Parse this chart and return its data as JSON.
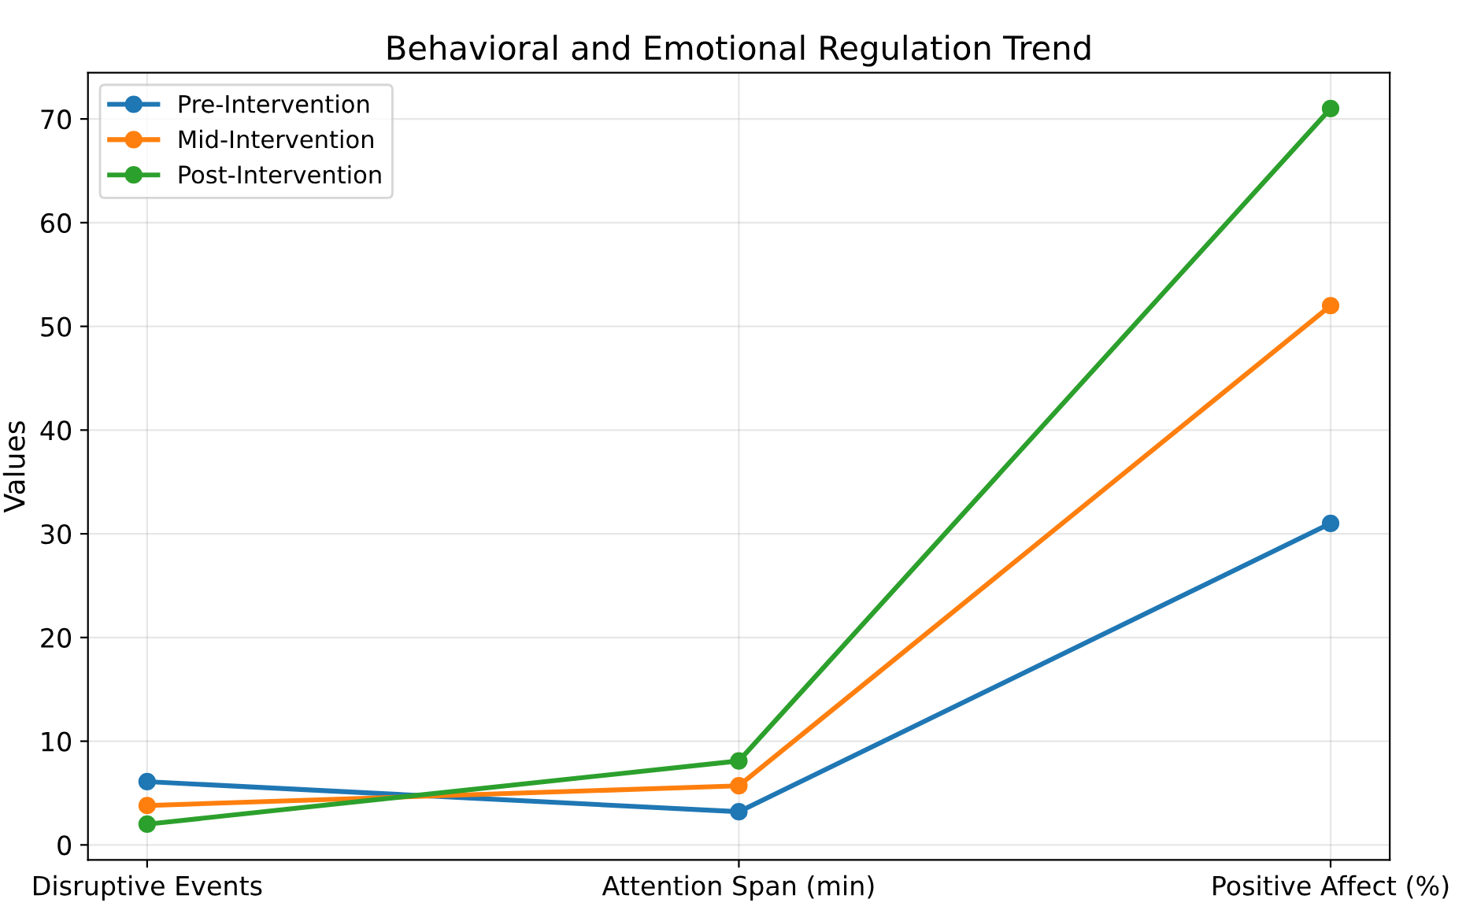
{
  "chart_data": {
    "type": "line",
    "title": "Behavioral and Emotional Regulation Trend",
    "ylabel": "Values",
    "categories": [
      "Disruptive Events",
      "Attention Span (min)",
      "Positive Affect (%)"
    ],
    "series": [
      {
        "name": "Pre-Intervention",
        "color": "#1f77b4",
        "values": [
          6.1,
          3.2,
          31
        ]
      },
      {
        "name": "Mid-Intervention",
        "color": "#ff7f0e",
        "values": [
          3.8,
          5.7,
          52
        ]
      },
      {
        "name": "Post-Intervention",
        "color": "#2ca02c",
        "values": [
          2.0,
          8.1,
          71
        ]
      }
    ],
    "ylim": [
      -1.45,
      74.45
    ],
    "yticks": [
      0,
      10,
      20,
      30,
      40,
      50,
      60,
      70
    ],
    "grid": true,
    "legend": "top left",
    "marker": "circle",
    "line_style": "solid"
  }
}
